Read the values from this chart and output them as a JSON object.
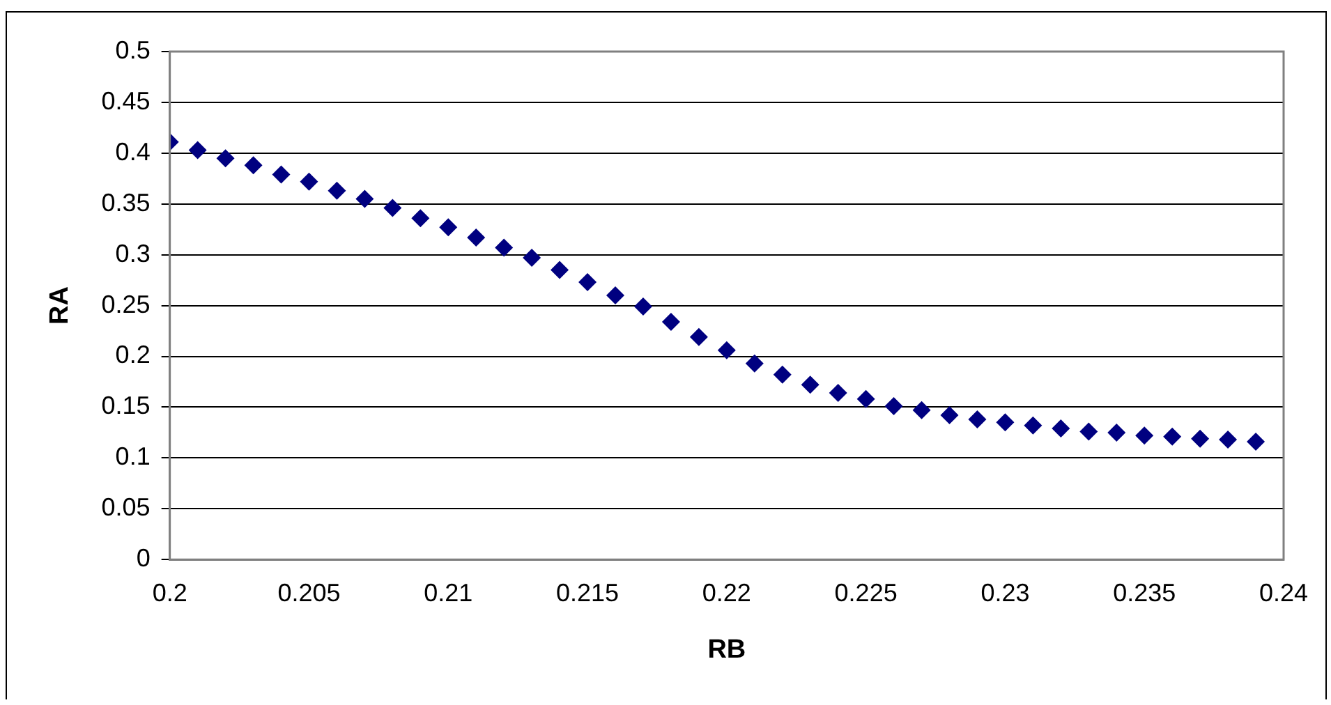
{
  "chart_data": {
    "type": "scatter",
    "xlabel": "RB",
    "ylabel": "RA",
    "x": [
      0.2,
      0.201,
      0.202,
      0.203,
      0.204,
      0.205,
      0.206,
      0.207,
      0.208,
      0.209,
      0.21,
      0.211,
      0.212,
      0.213,
      0.214,
      0.215,
      0.216,
      0.217,
      0.218,
      0.219,
      0.22,
      0.221,
      0.222,
      0.223,
      0.224,
      0.225,
      0.226,
      0.227,
      0.228,
      0.229,
      0.23,
      0.231,
      0.232,
      0.233,
      0.234,
      0.235,
      0.236,
      0.237,
      0.238,
      0.239
    ],
    "series": [
      {
        "color": "#000080",
        "values": [
          0.411,
          0.403,
          0.395,
          0.388,
          0.379,
          0.372,
          0.363,
          0.355,
          0.346,
          0.336,
          0.327,
          0.317,
          0.307,
          0.297,
          0.285,
          0.273,
          0.26,
          0.249,
          0.234,
          0.219,
          0.206,
          0.193,
          0.182,
          0.172,
          0.164,
          0.158,
          0.151,
          0.147,
          0.142,
          0.138,
          0.135,
          0.132,
          0.129,
          0.126,
          0.125,
          0.122,
          0.121,
          0.119,
          0.118,
          0.116
        ]
      }
    ],
    "xlim": [
      0.2,
      0.24
    ],
    "xticks": [
      0.2,
      0.205,
      0.21,
      0.215,
      0.22,
      0.225,
      0.23,
      0.235,
      0.24
    ],
    "ylim": [
      0,
      0.5
    ],
    "yticks": [
      0,
      0.05,
      0.1,
      0.15,
      0.2,
      0.25,
      0.3,
      0.35,
      0.4,
      0.45,
      0.5
    ],
    "grid": "y",
    "legend": false,
    "marker": "diamond"
  }
}
